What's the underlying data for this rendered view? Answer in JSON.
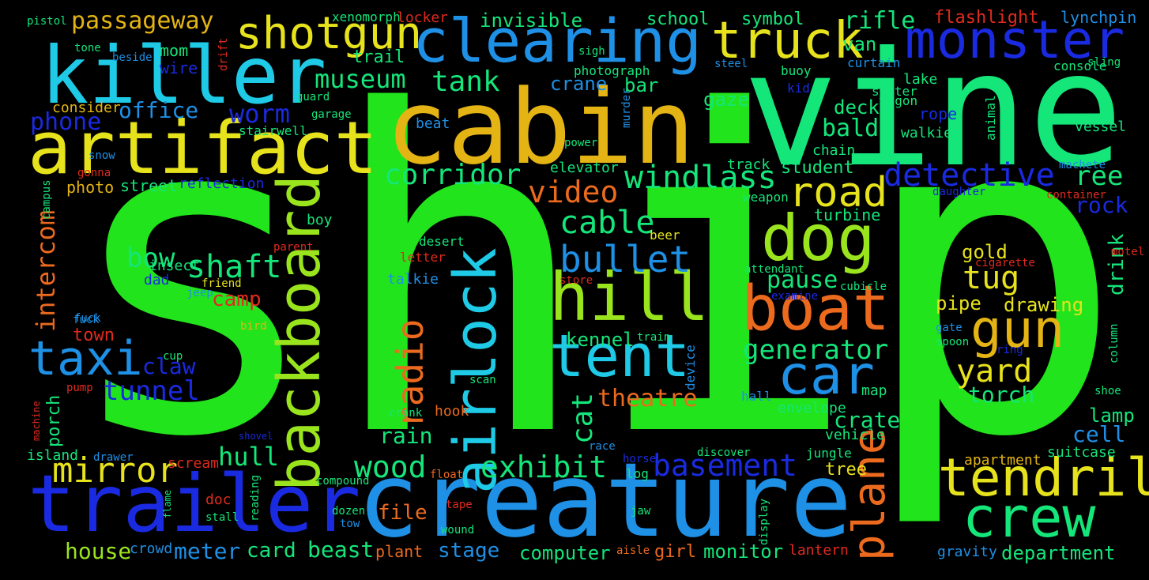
{
  "words": [
    "ship",
    "vine",
    "cabin",
    "creature",
    "trailer",
    "killer",
    "artifact",
    "clearing",
    "monster",
    "truck",
    "crew",
    "boat",
    "tendril",
    "hill",
    "tent",
    "dog",
    "car",
    "gun",
    "backboard",
    "airlock",
    "shotgun",
    "taxi",
    "plane",
    "mirror",
    "road",
    "bullet",
    "radio",
    "detective",
    "generator",
    "windlass",
    "exhibit",
    "wood",
    "basement",
    "intercom",
    "video",
    "shaft",
    "corridor",
    "tunnel",
    "cable",
    "museum",
    "tank",
    "bow",
    "passageway",
    "phone",
    "worm",
    "yard",
    "tug",
    "hull",
    "office",
    "cat",
    "rifle",
    "theatre",
    "claw",
    "ree",
    "camp",
    "pause",
    "bald",
    "torch",
    "rain",
    "crate",
    "cell",
    "rock",
    "kennel",
    "house",
    "beast",
    "file",
    "meter",
    "card",
    "stage",
    "computer",
    "department",
    "drink",
    "drawing",
    "lamp",
    "gold",
    "pipe",
    "deck",
    "gaze",
    "van",
    "lake",
    "rope",
    "walkie",
    "girl",
    "monitor",
    "plant",
    "photo",
    "street",
    "student",
    "school",
    "symbol",
    "flashlight",
    "invisible",
    "trail",
    "town",
    "porch",
    "tree",
    "bar",
    "crane",
    "turbine",
    "lynchpin",
    "consider",
    "apartment",
    "reflection",
    "mom",
    "wire",
    "insect",
    "dad",
    "elevator",
    "vehicle",
    "island",
    "crowd",
    "scream",
    "doc",
    "boy",
    "lantern",
    "gravity",
    "map",
    "envelope",
    "hook",
    "beat",
    "talkie",
    "jungle",
    "log",
    "device",
    "beer",
    "desert",
    "letter",
    "sister",
    "wagon",
    "vessel",
    "buoy",
    "kid",
    "animal",
    "console",
    "track",
    "chain",
    "suitcase",
    "weapon",
    "stairwell",
    "hall",
    "container",
    "shoe",
    "xenomorph",
    "locker",
    "pistol",
    "tone",
    "beside",
    "drift",
    "photograph",
    "sigh",
    "steel",
    "curtain",
    "sling",
    "guard",
    "garage",
    "murder",
    "snow",
    "gonna",
    "campus",
    "machete",
    "daughter",
    "power",
    "parent",
    "cigarette",
    "attendant",
    "friend",
    "store",
    "jeep",
    "fuck",
    "cubicle",
    "examine",
    "bird",
    "cup",
    "pump",
    "scan",
    "train",
    "gate",
    "spoon",
    "column",
    "ring",
    "motel",
    "crank",
    "race",
    "discover",
    "horse",
    "float",
    "compound",
    "shovel",
    "drawer",
    "machine",
    "flame",
    "stall",
    "reading",
    "tape",
    "dozen",
    "tow",
    "wound",
    "jaw",
    "display",
    "aisle",
    "fuck"
  ],
  "colors": {
    "background": "#000000",
    "bright_green": "#22e41c",
    "spring_green": "#14e67a",
    "sky_blue": "#1e90e6",
    "royal_blue": "#1a2ae0",
    "cyan": "#1ecae6",
    "yellow": "#e6e21c",
    "gold": "#e4b414",
    "orange": "#ec6a1e",
    "lime": "#9ae41e",
    "red": "#e02a1e"
  }
}
